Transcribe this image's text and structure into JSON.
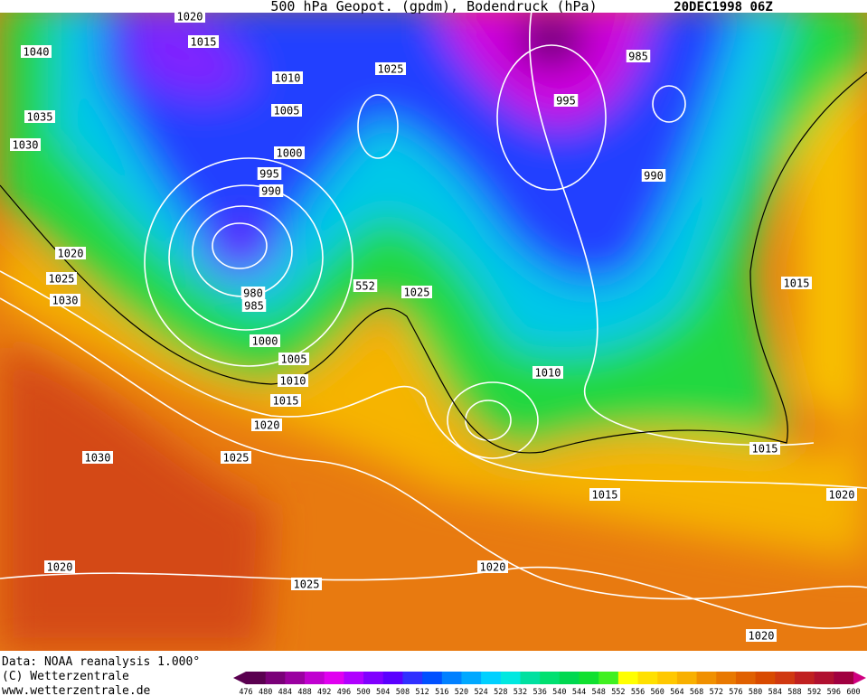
{
  "header": {
    "title": "500 hPa Geopot. (gpdm), Bodendruck (hPa)",
    "date": "20DEC1998 06Z"
  },
  "map": {
    "isobar_labels": [
      1020,
      1040,
      1015,
      1010,
      1025,
      985,
      1035,
      1005,
      995,
      1030,
      1000,
      995,
      990,
      990,
      1020,
      1025,
      980,
      985,
      552,
      1025,
      1015,
      1030,
      1000,
      1005,
      1010,
      1010,
      1015,
      1020,
      1015,
      1030,
      1025,
      1015,
      1020,
      1020,
      1020,
      1025,
      1020
    ]
  },
  "footer": {
    "source": "Data: NOAA reanalysis 1.000°",
    "copyright": "(C) Wetterzentrale",
    "url": "www.wetterzentrale.de"
  },
  "colorbar": {
    "levels": [
      476,
      480,
      484,
      488,
      492,
      496,
      500,
      504,
      508,
      512,
      516,
      520,
      524,
      528,
      532,
      536,
      540,
      544,
      548,
      552,
      556,
      560,
      564,
      568,
      572,
      576,
      580,
      584,
      588,
      592,
      596,
      600
    ],
    "colors": [
      "#5a0050",
      "#7a0078",
      "#9a00a0",
      "#c000d0",
      "#e000f0",
      "#b000ff",
      "#8000ff",
      "#5a00ff",
      "#3030ff",
      "#0050ff",
      "#0080ff",
      "#00a8ff",
      "#00d0ff",
      "#00e8e0",
      "#00e0a0",
      "#00e070",
      "#00d850",
      "#10e030",
      "#40f020",
      "#ffff00",
      "#ffe000",
      "#ffc800",
      "#f8b000",
      "#f09000",
      "#e87800",
      "#e06000",
      "#d84a00",
      "#d03810",
      "#c02020",
      "#b01030",
      "#a00040",
      "#d00080"
    ]
  }
}
